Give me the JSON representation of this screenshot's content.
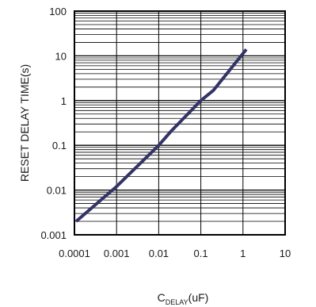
{
  "chart_data": {
    "type": "line",
    "title": "",
    "ylabel": "RESET DELAY TIME(s)",
    "xlabel": {
      "base": "C",
      "subscript": "DELAY",
      "suffix": "(uF)"
    },
    "xscale": "log",
    "yscale": "log",
    "xlim": [
      0.0001,
      10
    ],
    "ylim": [
      0.001,
      100
    ],
    "x_ticks": [
      0.0001,
      0.001,
      0.01,
      0.1,
      1,
      10
    ],
    "x_tick_labels": [
      "0.0001",
      "0.001",
      "0.01",
      "0.1",
      "1",
      "10"
    ],
    "y_ticks": [
      0.001,
      0.01,
      0.1,
      1,
      10,
      100
    ],
    "y_tick_labels": [
      "0.001",
      "0.01",
      "0.1",
      "1",
      "10",
      "100"
    ],
    "grid": true,
    "line_color": "#333366",
    "series": [
      {
        "x": [
          0.00011,
          0.001,
          0.01,
          0.02,
          0.1,
          0.2,
          1.2
        ],
        "y": [
          0.002,
          0.012,
          0.1,
          0.21,
          1.0,
          1.7,
          14
        ]
      }
    ]
  }
}
